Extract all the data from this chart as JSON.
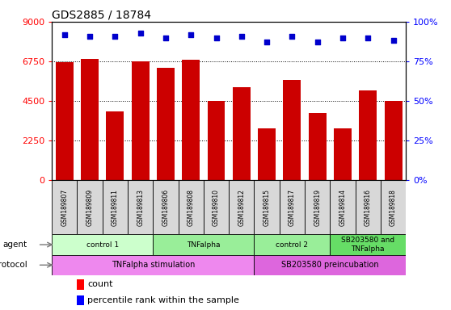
{
  "title": "GDS2885 / 18784",
  "samples": [
    "GSM189807",
    "GSM189809",
    "GSM189811",
    "GSM189813",
    "GSM189806",
    "GSM189808",
    "GSM189810",
    "GSM189812",
    "GSM189815",
    "GSM189817",
    "GSM189819",
    "GSM189814",
    "GSM189816",
    "GSM189818"
  ],
  "counts": [
    6700,
    6900,
    3900,
    6750,
    6400,
    6850,
    4500,
    5300,
    2950,
    5700,
    3800,
    2950,
    5100,
    4500
  ],
  "percentiles": [
    92,
    91,
    91,
    93,
    90,
    92,
    90,
    91,
    87,
    91,
    87,
    90,
    90,
    88
  ],
  "left_ylim": [
    0,
    9000
  ],
  "right_ylim": [
    0,
    100
  ],
  "left_yticks": [
    0,
    2250,
    4500,
    6750,
    9000
  ],
  "right_yticks": [
    0,
    25,
    50,
    75,
    100
  ],
  "bar_color": "#cc0000",
  "dot_color": "#0000cc",
  "agent_groups": [
    {
      "label": "control 1",
      "start": 0,
      "end": 4,
      "color": "#ccffcc"
    },
    {
      "label": "TNFalpha",
      "start": 4,
      "end": 8,
      "color": "#99ee99"
    },
    {
      "label": "control 2",
      "start": 8,
      "end": 11,
      "color": "#99ee99"
    },
    {
      "label": "SB203580 and\nTNFalpha",
      "start": 11,
      "end": 14,
      "color": "#66dd66"
    }
  ],
  "protocol_groups": [
    {
      "label": "TNFalpha stimulation",
      "start": 0,
      "end": 8,
      "color": "#ee88ee"
    },
    {
      "label": "SB203580 preincubation",
      "start": 8,
      "end": 14,
      "color": "#dd66dd"
    }
  ],
  "sample_bg": "#d8d8d8",
  "plot_bg": "#ffffff"
}
